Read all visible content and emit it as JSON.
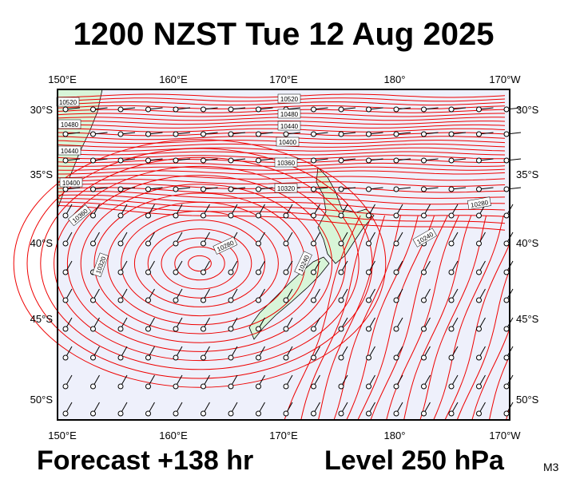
{
  "title": "1200 NZST Tue 12 Aug 2025",
  "lon_labels": [
    "150°E",
    "160°E",
    "170°E",
    "180°",
    "170°W"
  ],
  "lat_labels": [
    "30°S",
    "35°S",
    "40°S",
    "45°S",
    "50°S"
  ],
  "contour_labels": [
    "10520",
    "10480",
    "10440",
    "10400",
    "10360",
    "10320",
    "10520",
    "10480",
    "10440",
    "10400",
    "10360",
    "10320",
    "10280",
    "10240",
    "10280",
    "10240"
  ],
  "forecast": "Forecast +138 hr",
  "level": "Level 250 hPa",
  "model": "M3"
}
